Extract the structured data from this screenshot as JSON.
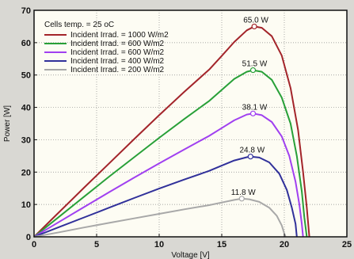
{
  "chart_data": {
    "type": "line",
    "xlabel": "Voltage [V]",
    "ylabel": "Power [W]",
    "xlim": [
      0,
      25
    ],
    "ylim": [
      0,
      70
    ],
    "x_ticks": [
      "0",
      "5",
      "10",
      "15",
      "20",
      "25"
    ],
    "y_ticks": [
      "0",
      "10",
      "20",
      "30",
      "40",
      "50",
      "60",
      "70"
    ],
    "grid": true,
    "legend_placement": "top-left",
    "legend_title": "Cells temp.  = 25 oC",
    "background": "#fdfcf3",
    "series": [
      {
        "name": "Incident Irrad. = 1000 W/m2",
        "color": "#a3242a",
        "points": [
          [
            0,
            0
          ],
          [
            2,
            7.6
          ],
          [
            4,
            15.2
          ],
          [
            6,
            22.7
          ],
          [
            8,
            30.2
          ],
          [
            10,
            37.6
          ],
          [
            12,
            44.8
          ],
          [
            14,
            51.7
          ],
          [
            15,
            55.9
          ],
          [
            16,
            60.2
          ],
          [
            17,
            63.8
          ],
          [
            17.6,
            65.0
          ],
          [
            18.2,
            64.6
          ],
          [
            19,
            62.0
          ],
          [
            19.8,
            56.0
          ],
          [
            20.5,
            46.0
          ],
          [
            21.1,
            33.0
          ],
          [
            21.5,
            20.0
          ],
          [
            21.8,
            9.0
          ],
          [
            22.0,
            0
          ]
        ],
        "peak": {
          "x": 17.6,
          "y": 65.0,
          "label": "65.0 W"
        }
      },
      {
        "name": "Incident Irrad. = 600 W/m2",
        "color": "#28a038",
        "points": [
          [
            0,
            0
          ],
          [
            2,
            6.2
          ],
          [
            4,
            12.4
          ],
          [
            6,
            18.6
          ],
          [
            8,
            24.6
          ],
          [
            10,
            30.6
          ],
          [
            12,
            36.4
          ],
          [
            14,
            42.0
          ],
          [
            15,
            45.4
          ],
          [
            16,
            48.8
          ],
          [
            17,
            51.0
          ],
          [
            17.5,
            51.5
          ],
          [
            18.2,
            51.0
          ],
          [
            19,
            48.5
          ],
          [
            19.8,
            43.0
          ],
          [
            20.5,
            35.0
          ],
          [
            21.0,
            25.0
          ],
          [
            21.4,
            14.0
          ],
          [
            21.6,
            6.0
          ],
          [
            21.8,
            0
          ]
        ],
        "peak": {
          "x": 17.5,
          "y": 51.5,
          "label": "51.5 W"
        }
      },
      {
        "name": "Incident Irrad. = 600 W/m2",
        "color": "#a040f0",
        "points": [
          [
            0,
            0
          ],
          [
            2,
            4.6
          ],
          [
            4,
            9.2
          ],
          [
            6,
            13.8
          ],
          [
            8,
            18.3
          ],
          [
            10,
            22.7
          ],
          [
            12,
            27.0
          ],
          [
            14,
            31.2
          ],
          [
            15,
            33.6
          ],
          [
            16,
            36.0
          ],
          [
            17,
            37.8
          ],
          [
            17.5,
            38.1
          ],
          [
            18.2,
            37.6
          ],
          [
            19,
            35.5
          ],
          [
            19.8,
            31.0
          ],
          [
            20.4,
            25.0
          ],
          [
            20.9,
            17.0
          ],
          [
            21.2,
            10.0
          ],
          [
            21.4,
            4.0
          ],
          [
            21.5,
            0
          ]
        ],
        "peak": {
          "x": 17.5,
          "y": 38.1,
          "label": "38.1 W"
        }
      },
      {
        "name": "Incident Irrad. = 400 W/m2",
        "color": "#30309a",
        "points": [
          [
            0,
            0
          ],
          [
            2,
            3.0
          ],
          [
            4,
            6.0
          ],
          [
            6,
            9.0
          ],
          [
            8,
            12.0
          ],
          [
            10,
            14.9
          ],
          [
            12,
            17.7
          ],
          [
            14,
            20.4
          ],
          [
            15,
            22.0
          ],
          [
            16,
            23.6
          ],
          [
            17,
            24.6
          ],
          [
            17.3,
            24.8
          ],
          [
            18,
            24.5
          ],
          [
            18.8,
            23.0
          ],
          [
            19.6,
            19.5
          ],
          [
            20.2,
            14.5
          ],
          [
            20.6,
            9.0
          ],
          [
            20.9,
            4.0
          ],
          [
            21.0,
            0
          ]
        ],
        "peak": {
          "x": 17.3,
          "y": 24.8,
          "label": "24.8 W"
        }
      },
      {
        "name": "Incident Irrad. = 200 W/m2",
        "color": "#a8a8a8",
        "points": [
          [
            0,
            0
          ],
          [
            2,
            1.4
          ],
          [
            4,
            2.9
          ],
          [
            6,
            4.3
          ],
          [
            8,
            5.7
          ],
          [
            10,
            7.1
          ],
          [
            12,
            8.5
          ],
          [
            14,
            9.8
          ],
          [
            15,
            10.6
          ],
          [
            16,
            11.4
          ],
          [
            16.6,
            11.8
          ],
          [
            17.2,
            11.6
          ],
          [
            18,
            10.8
          ],
          [
            18.8,
            9.0
          ],
          [
            19.4,
            6.5
          ],
          [
            19.8,
            3.5
          ],
          [
            20.0,
            1.0
          ],
          [
            20.1,
            0
          ]
        ],
        "peak": {
          "x": 16.6,
          "y": 11.8,
          "label": "11.8 W"
        }
      }
    ]
  }
}
